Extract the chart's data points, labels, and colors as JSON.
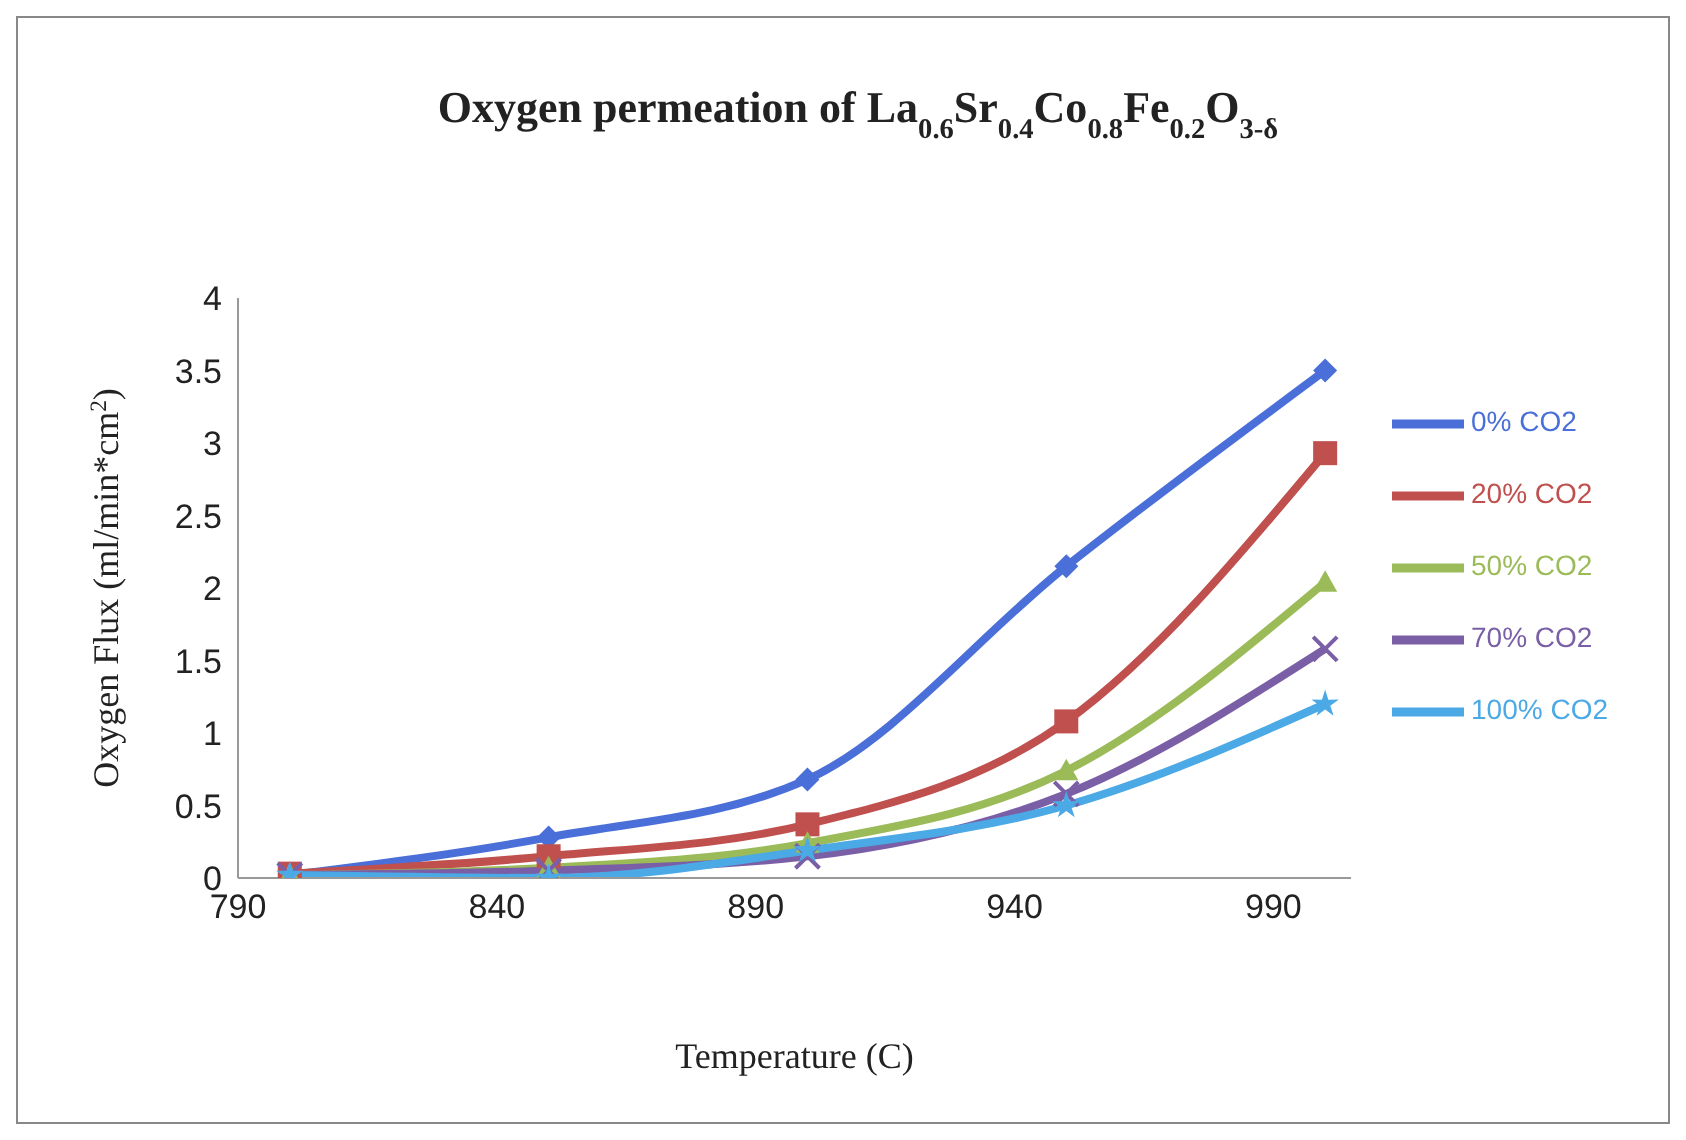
{
  "chart_data": {
    "type": "line",
    "title": "Oxygen permeation of La$_{0.6}$Sr$_{0.4}$Co$_{0.8}$Fe$_{0.2}$O$_{3-δ}$",
    "xlabel": "Temperature (C)",
    "ylabel": "Oxygen Flux (ml/min*cm$^{2}$)",
    "x": [
      800,
      850,
      900,
      950,
      1000
    ],
    "series": [
      {
        "name": "0% CO2",
        "color": "#4a6fd8",
        "marker": "diamond",
        "values": [
          0.02,
          0.28,
          0.68,
          2.15,
          3.5
        ]
      },
      {
        "name": "20% CO2",
        "color": "#c0504d",
        "marker": "square",
        "values": [
          0.03,
          0.15,
          0.37,
          1.08,
          2.93
        ]
      },
      {
        "name": "50% CO2",
        "color": "#9bbb59",
        "marker": "triangle",
        "values": [
          0.02,
          0.07,
          0.24,
          0.74,
          2.04
        ]
      },
      {
        "name": "70% CO2",
        "color": "#7a5fa6",
        "marker": "cross",
        "values": [
          0.02,
          0.05,
          0.15,
          0.58,
          1.58
        ]
      },
      {
        "name": "100% CO2",
        "color": "#4ba9e6",
        "marker": "star",
        "values": [
          0.02,
          0,
          0.19,
          0.5,
          1.2
        ]
      }
    ],
    "xlim": [
      790,
      1005
    ],
    "xticks": [
      790,
      840,
      890,
      940,
      990
    ],
    "ylim": [
      0,
      4
    ],
    "yticks": [
      0,
      0.5,
      1,
      1.5,
      2,
      2.5,
      3,
      3.5,
      4
    ],
    "legend": "right"
  }
}
